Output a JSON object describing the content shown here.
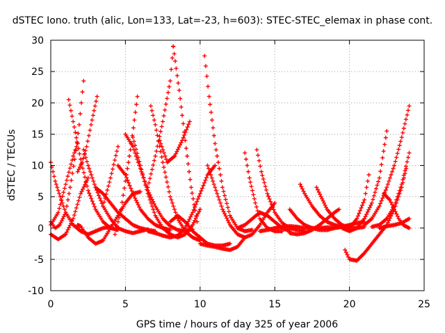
{
  "chart_data": {
    "type": "scatter",
    "title": "dSTEC Iono. truth (alic, Lon=133, Lat=-23, h=603): STEC-STEC_elemax in phase cont.",
    "xlabel": "GPS time / hours of day 325 of year 2006",
    "ylabel": "dSTEC  / TECUs",
    "xlim": [
      0,
      25
    ],
    "ylim": [
      -10,
      30
    ],
    "xticks": [
      0,
      5,
      10,
      15,
      20,
      25
    ],
    "yticks": [
      -10,
      -5,
      0,
      5,
      10,
      15,
      20,
      25,
      30
    ],
    "grid": true,
    "marker": "plus",
    "color": "#ff0000",
    "arcs": [
      {
        "x": [
          0.0,
          0.3,
          0.7,
          1.0,
          1.5,
          2.0,
          2.5,
          3.0,
          3.5,
          4.0
        ],
        "y": [
          10.5,
          7.5,
          4.5,
          2.5,
          0.5,
          -0.5,
          -1.0,
          -0.5,
          0.0,
          0.2
        ]
      },
      {
        "x": [
          0.0,
          0.3,
          0.6,
          1.0,
          1.3,
          1.6,
          1.9,
          2.2
        ],
        "y": [
          1.0,
          0.0,
          0.5,
          2.5,
          6.5,
          11.0,
          16.5,
          23.5
        ]
      },
      {
        "x": [
          0.0,
          0.5,
          1.0,
          1.5,
          2.0,
          2.5
        ],
        "y": [
          -1.0,
          -1.8,
          -1.0,
          1.5,
          5.5,
          8.0
        ]
      },
      {
        "x": [
          0.0,
          0.5,
          1.0,
          1.5,
          1.8
        ],
        "y": [
          0.5,
          2.5,
          7.0,
          11.5,
          13.5
        ]
      },
      {
        "x": [
          1.2,
          1.5,
          2.0,
          2.5,
          3.0,
          3.5,
          4.0,
          4.5
        ],
        "y": [
          20.5,
          17.0,
          11.0,
          6.0,
          3.0,
          1.0,
          0.0,
          -0.3
        ]
      },
      {
        "x": [
          1.8,
          2.0,
          2.5,
          3.0,
          3.5,
          4.0,
          4.5,
          5.0,
          5.5,
          6.0
        ],
        "y": [
          0.5,
          0.3,
          -1.5,
          -2.5,
          -2.0,
          0.0,
          2.0,
          4.0,
          5.5,
          5.8
        ]
      },
      {
        "x": [
          1.8,
          2.1,
          2.4,
          2.7,
          3.1
        ],
        "y": [
          9.0,
          10.5,
          13.0,
          16.5,
          21.0
        ]
      },
      {
        "x": [
          2.2,
          2.5,
          3.0,
          3.5,
          4.0,
          4.5,
          5.0,
          5.5,
          6.0,
          6.5
        ],
        "y": [
          12.5,
          10.0,
          6.5,
          3.5,
          1.5,
          0.0,
          -0.5,
          -0.8,
          -0.5,
          -0.2
        ]
      },
      {
        "x": [
          3.0,
          3.5,
          4.0,
          4.5,
          5.0,
          5.5,
          6.0,
          6.5,
          7.0
        ],
        "y": [
          6.5,
          5.5,
          4.0,
          2.5,
          1.5,
          0.5,
          0.0,
          -0.3,
          -0.5
        ]
      },
      {
        "x": [
          3.5,
          4.0,
          4.5
        ],
        "y": [
          3.5,
          8.0,
          13.0
        ]
      },
      {
        "x": [
          4.3,
          4.7,
          5.0,
          5.4,
          5.8
        ],
        "y": [
          -1.0,
          3.0,
          7.5,
          13.5,
          21.0
        ]
      },
      {
        "x": [
          4.5,
          5.0,
          5.5,
          6.0,
          6.5,
          7.0,
          7.5,
          8.0
        ],
        "y": [
          10.0,
          8.5,
          5.5,
          3.0,
          1.5,
          0.5,
          0.0,
          -0.3
        ]
      },
      {
        "x": [
          5.0,
          5.5,
          6.0,
          6.5,
          7.0,
          7.5,
          8.0,
          8.5,
          9.0,
          9.5
        ],
        "y": [
          15.0,
          13.0,
          9.5,
          6.0,
          3.5,
          1.5,
          0.3,
          -0.3,
          -0.5,
          -0.2
        ]
      },
      {
        "x": [
          5.5,
          6.0,
          6.5,
          7.0,
          7.5,
          8.0,
          8.5,
          9.0,
          9.5,
          10.0
        ],
        "y": [
          14.5,
          10.0,
          5.5,
          2.0,
          0.0,
          -1.0,
          -1.5,
          -1.0,
          0.5,
          3.0
        ]
      },
      {
        "x": [
          6.5,
          7.0,
          7.5,
          8.0,
          8.2
        ],
        "y": [
          6.5,
          11.5,
          17.0,
          23.5,
          29.0
        ]
      },
      {
        "x": [
          6.7,
          7.0,
          7.5,
          8.0,
          8.5,
          9.0,
          9.5,
          10.0
        ],
        "y": [
          19.5,
          16.5,
          10.5,
          5.0,
          1.5,
          -0.5,
          -1.5,
          -2.0
        ]
      },
      {
        "x": [
          7.3,
          7.8,
          8.3,
          8.8,
          9.3
        ],
        "y": [
          14.0,
          10.5,
          11.5,
          14.0,
          17.0
        ]
      },
      {
        "x": [
          6.5,
          7.0,
          7.5,
          8.0,
          8.5,
          9.0,
          9.5,
          10.0,
          10.5,
          11.0
        ],
        "y": [
          -0.5,
          -0.8,
          -1.2,
          -1.5,
          -1.2,
          0.0,
          2.5,
          5.5,
          8.5,
          10.0
        ]
      },
      {
        "x": [
          8.0,
          8.5,
          9.0,
          9.5,
          10.0,
          10.5,
          11.0,
          11.5,
          12.0
        ],
        "y": [
          1.0,
          2.0,
          1.0,
          -0.5,
          -1.5,
          -2.5,
          -2.8,
          -2.8,
          -2.5
        ]
      },
      {
        "x": [
          8.2,
          8.6,
          9.0,
          9.4,
          9.8
        ],
        "y": [
          29.0,
          22.0,
          14.0,
          6.5,
          1.0
        ]
      },
      {
        "x": [
          10.3,
          10.6,
          11.0,
          11.5,
          12.0,
          12.5,
          13.0,
          13.5
        ],
        "y": [
          27.5,
          21.0,
          13.5,
          6.5,
          2.0,
          0.0,
          -0.5,
          -0.3
        ]
      },
      {
        "x": [
          10.0,
          10.5,
          11.0,
          11.5,
          12.0,
          12.5,
          13.0
        ],
        "y": [
          -2.5,
          -2.8,
          -3.0,
          -3.3,
          -3.5,
          -3.0,
          -1.5
        ]
      },
      {
        "x": [
          10.5,
          11.0,
          11.5,
          12.0,
          12.5,
          13.0,
          13.5,
          14.0,
          14.5,
          15.0
        ],
        "y": [
          10.0,
          6.5,
          3.0,
          0.5,
          -1.0,
          -1.5,
          -1.0,
          0.5,
          2.5,
          4.0
        ]
      },
      {
        "x": [
          12.5,
          13.0,
          13.5,
          14.0,
          14.5,
          15.0,
          15.5,
          16.0
        ],
        "y": [
          0.0,
          0.5,
          1.5,
          2.5,
          2.0,
          1.0,
          0.0,
          -0.5
        ]
      },
      {
        "x": [
          13.0,
          13.3,
          13.7,
          14.0,
          14.5,
          15.0,
          15.5
        ],
        "y": [
          12.0,
          8.0,
          4.0,
          1.5,
          0.0,
          -0.5,
          -0.5
        ]
      },
      {
        "x": [
          13.8,
          14.1,
          14.5,
          15.0,
          15.5,
          16.0,
          16.5,
          17.0
        ],
        "y": [
          12.5,
          9.0,
          5.5,
          2.5,
          0.8,
          0.0,
          -0.3,
          -0.5
        ]
      },
      {
        "x": [
          14.0,
          14.5,
          15.0,
          15.5,
          16.0,
          16.5,
          17.0,
          17.5,
          18.0,
          18.5,
          19.0,
          19.5,
          20.0
        ],
        "y": [
          -0.5,
          -0.3,
          0.0,
          0.2,
          0.3,
          0.2,
          0.0,
          0.0,
          0.0,
          0.1,
          0.1,
          0.2,
          0.3
        ]
      },
      {
        "x": [
          16.0,
          16.5,
          17.0,
          17.5,
          18.0,
          18.5,
          19.0,
          19.5,
          20.0,
          20.5,
          21.0
        ],
        "y": [
          3.0,
          1.5,
          0.5,
          0.0,
          -0.3,
          -0.3,
          0.0,
          0.2,
          0.5,
          0.8,
          1.0
        ]
      },
      {
        "x": [
          16.7,
          17.0,
          17.5,
          18.0,
          18.5,
          19.0,
          19.5,
          20.0
        ],
        "y": [
          7.0,
          5.5,
          3.5,
          2.0,
          1.0,
          0.5,
          0.2,
          0.0
        ]
      },
      {
        "x": [
          17.8,
          18.1,
          18.5,
          19.0,
          19.5,
          20.0,
          20.5,
          21.0
        ],
        "y": [
          6.5,
          5.0,
          3.0,
          1.5,
          0.5,
          0.0,
          0.0,
          0.2
        ]
      },
      {
        "x": [
          16.0,
          16.5,
          17.0,
          17.5,
          18.0,
          18.5,
          19.0,
          19.3
        ],
        "y": [
          -0.8,
          -1.0,
          -0.8,
          -0.3,
          0.5,
          1.5,
          2.5,
          3.0
        ]
      },
      {
        "x": [
          19.7,
          20.0,
          20.5,
          21.0,
          21.5,
          22.0,
          22.5,
          23.0,
          23.5,
          23.8
        ],
        "y": [
          -3.5,
          -5.0,
          -5.2,
          -4.0,
          -2.5,
          -1.0,
          0.5,
          3.0,
          6.5,
          9.5
        ]
      },
      {
        "x": [
          19.5,
          20.0,
          20.5,
          21.0,
          21.5,
          22.0,
          22.5
        ],
        "y": [
          0.0,
          -0.5,
          0.0,
          1.5,
          4.0,
          8.0,
          15.5
        ]
      },
      {
        "x": [
          20.0,
          20.5,
          21.0,
          21.3
        ],
        "y": [
          0.0,
          1.5,
          4.5,
          8.5
        ]
      },
      {
        "x": [
          21.0,
          21.5,
          22.0,
          22.5,
          23.0,
          23.5,
          24.0
        ],
        "y": [
          0.5,
          1.5,
          3.5,
          6.5,
          10.0,
          14.5,
          19.5
        ]
      },
      {
        "x": [
          22.3,
          22.7,
          23.0,
          23.3,
          23.6,
          24.0
        ],
        "y": [
          5.5,
          4.5,
          3.0,
          1.5,
          0.5,
          0.0
        ]
      },
      {
        "x": [
          21.5,
          22.0,
          22.5,
          23.0,
          23.5,
          24.0
        ],
        "y": [
          0.2,
          0.5,
          1.5,
          3.5,
          7.0,
          12.0
        ]
      },
      {
        "x": [
          22.0,
          22.5,
          23.0,
          23.5,
          24.0
        ],
        "y": [
          0.0,
          0.3,
          0.5,
          0.8,
          1.5
        ]
      }
    ]
  }
}
